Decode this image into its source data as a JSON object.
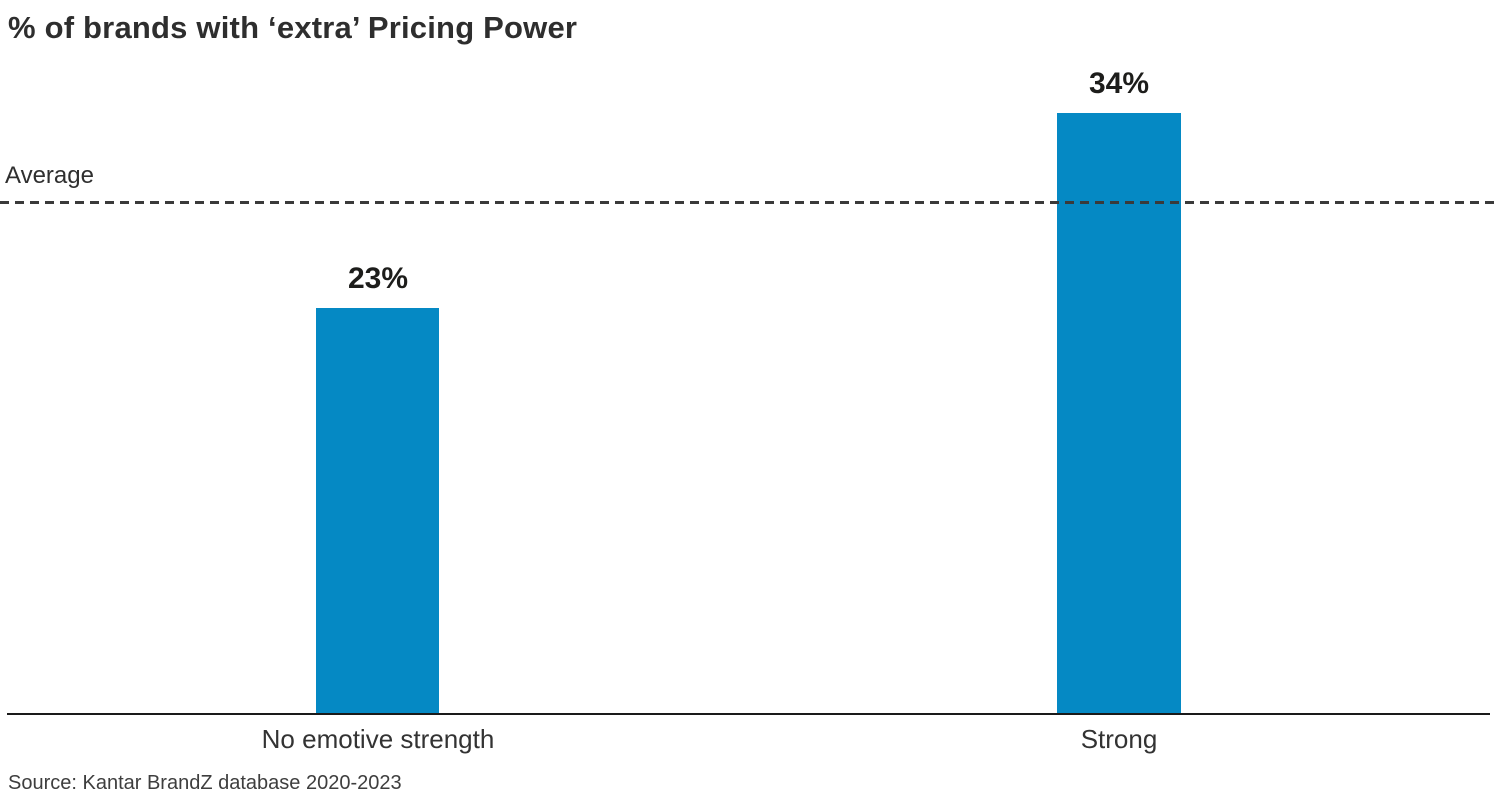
{
  "colors": {
    "bar": "#0589c4",
    "title_text": "#2e2e2e",
    "axis_line": "#1a1a1a",
    "dashed_line": "#3a3a3a",
    "value_label_text": "#1d1d1b",
    "category_text": "#333333"
  },
  "chart_data": {
    "type": "bar",
    "title": "% of brands with ‘extra’ Pricing Power",
    "categories": [
      "No emotive strength",
      "Strong"
    ],
    "values": [
      23,
      34
    ],
    "value_labels": [
      "23%",
      "34%"
    ],
    "xlabel": "",
    "ylabel": "",
    "ylim": [
      0,
      40
    ],
    "grid": false,
    "legend": false,
    "average_line": {
      "label": "Average",
      "value": 29,
      "style": "dashed"
    },
    "source": "Source: Kantar BrandZ database 2020-2023"
  }
}
